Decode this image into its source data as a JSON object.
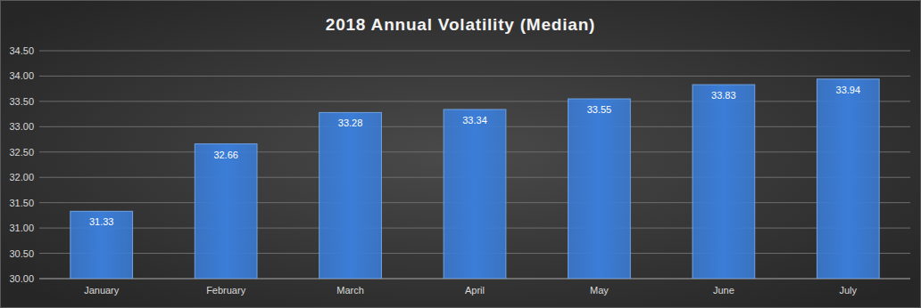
{
  "chart_data": {
    "type": "bar",
    "title": "2018 Annual Volatility (Median)",
    "categories": [
      "January",
      "February",
      "March",
      "April",
      "May",
      "June",
      "July"
    ],
    "values": [
      31.33,
      32.66,
      33.28,
      33.34,
      33.55,
      33.83,
      33.94
    ],
    "color": "#3b7dd8",
    "ylim": [
      30,
      34.5
    ],
    "yticks": [
      {
        "value": 30,
        "label": "30.00"
      },
      {
        "value": 30.5,
        "label": "30.50"
      },
      {
        "value": 31,
        "label": "31.00"
      },
      {
        "value": 31.5,
        "label": "31.50"
      },
      {
        "value": 32,
        "label": "32.00"
      },
      {
        "value": 32.5,
        "label": "32.50"
      },
      {
        "value": 33,
        "label": "33.00"
      },
      {
        "value": 33.5,
        "label": "33.50"
      },
      {
        "value": 34,
        "label": "34.00"
      },
      {
        "value": 34.5,
        "label": "34.50"
      }
    ],
    "grid": true,
    "data_labels": true
  }
}
